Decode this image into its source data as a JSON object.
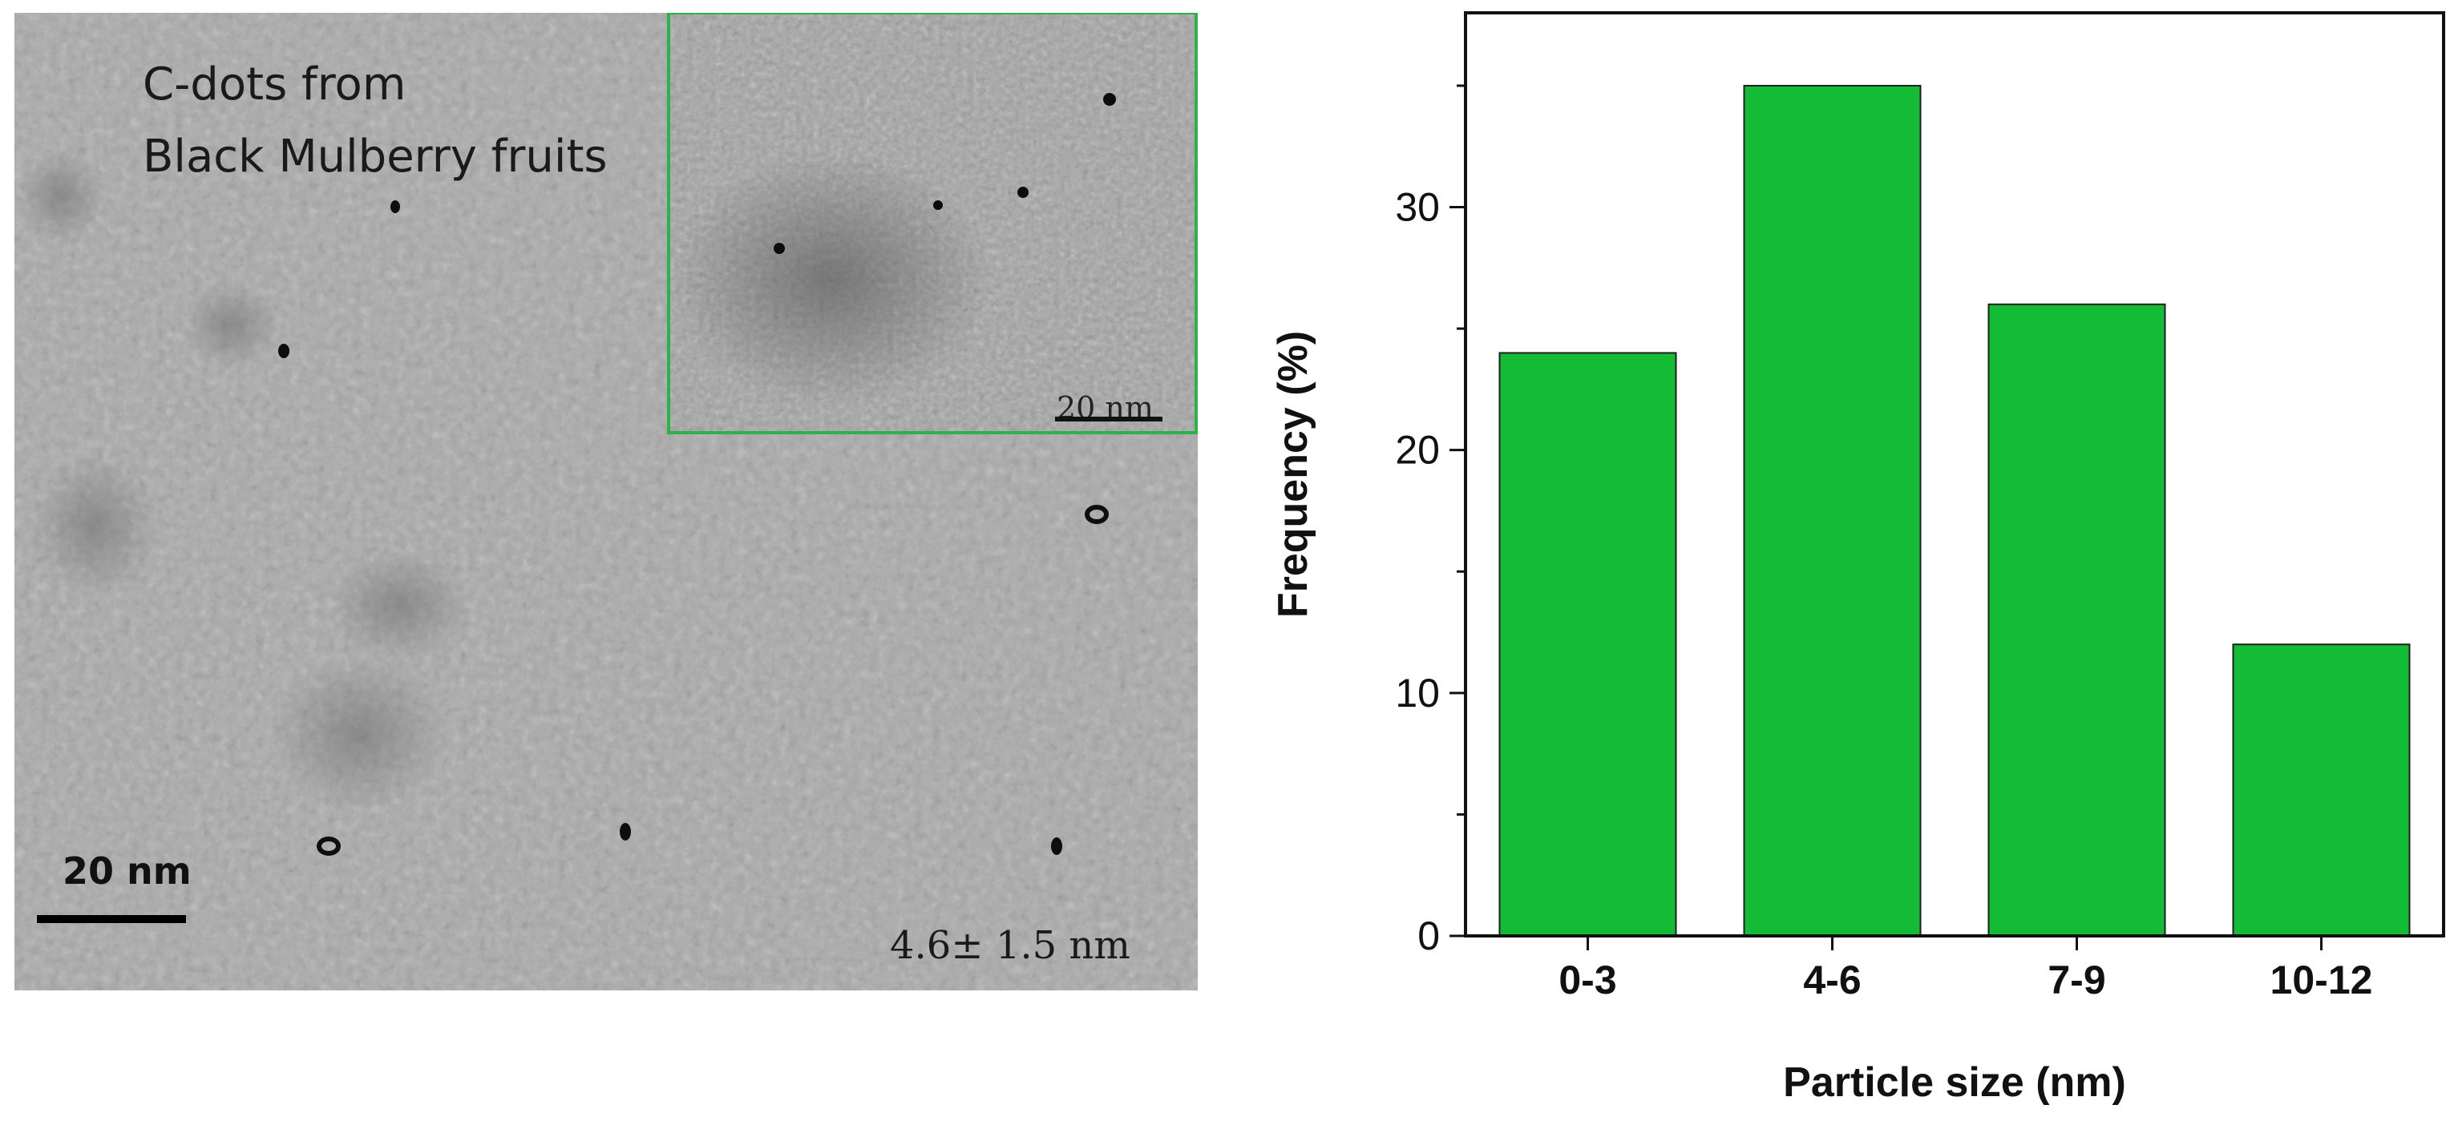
{
  "micrograph": {
    "caption_line_1": "C-dots from",
    "caption_line_2": "Black Mulberry fruits",
    "scale_label": "20 nm",
    "size_annotation": "4.6± 1.5 nm",
    "inset_scale_label": "20 nm",
    "inset_border_color": "#2bb34a"
  },
  "chart_data": {
    "type": "bar",
    "categories": [
      "0-3",
      "4-6",
      "7-9",
      "10-12"
    ],
    "values": [
      24,
      35,
      26,
      12
    ],
    "xlabel": "Particle size (nm)",
    "ylabel": "Frequency (%)",
    "ylim": [
      0,
      38
    ],
    "yticks": [
      0,
      10,
      20,
      30
    ],
    "bar_color": "#14bb35",
    "grid": false
  }
}
